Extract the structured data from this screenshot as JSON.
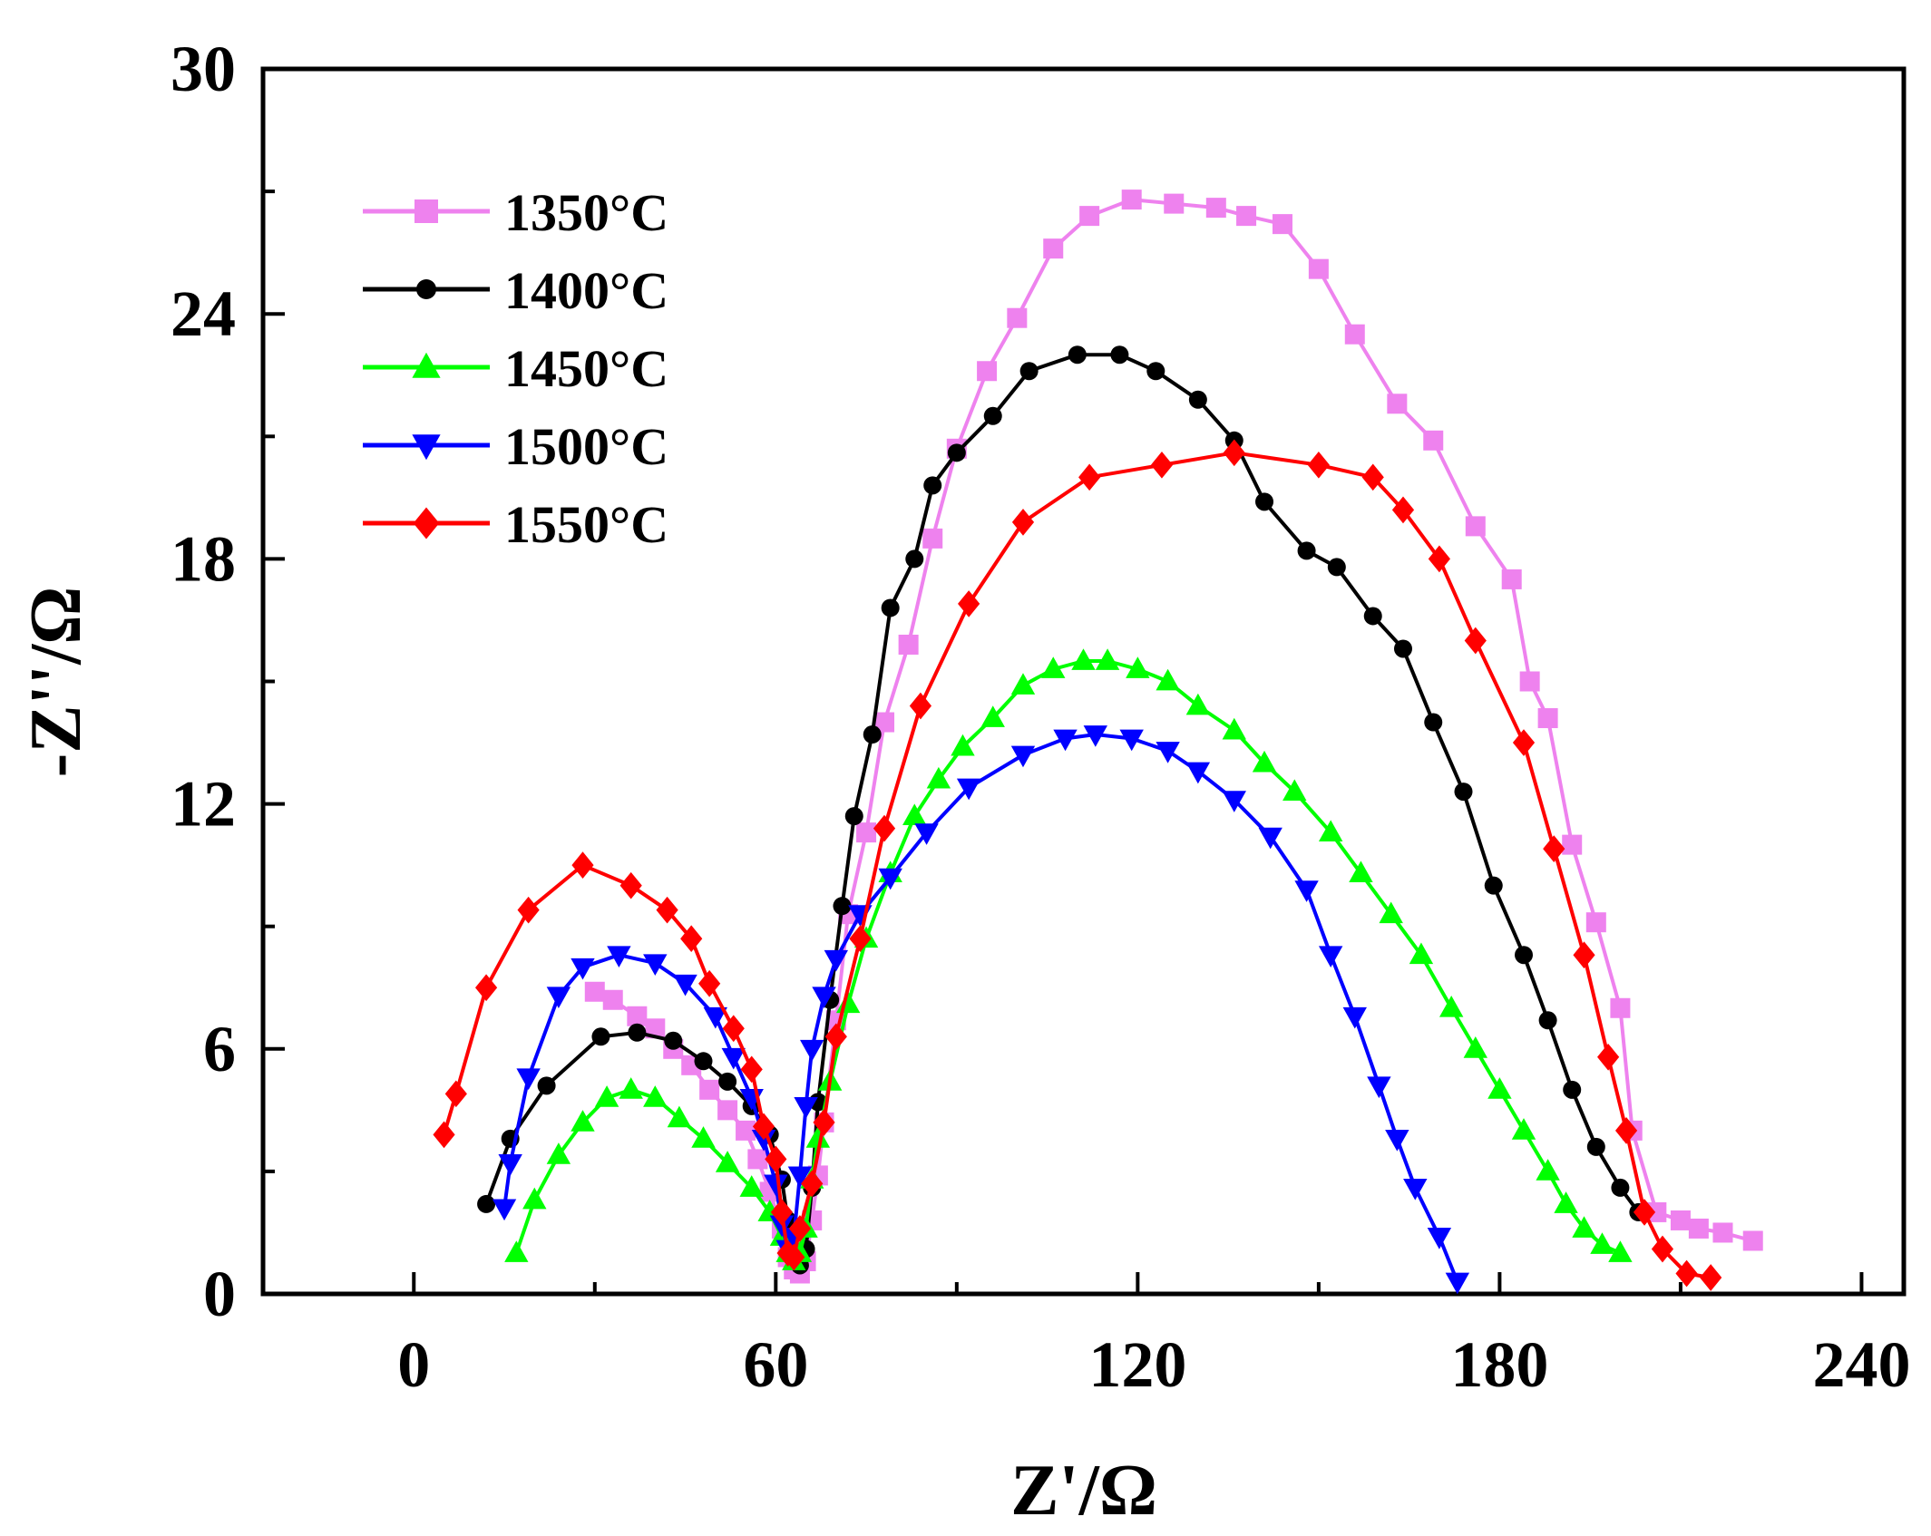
{
  "chart_data": {
    "type": "scatter",
    "title": "",
    "xlabel": "Z'/Ω",
    "ylabel": "-Z''/Ω",
    "xlim": [
      -25,
      247
    ],
    "ylim": [
      0,
      30
    ],
    "xticks": [
      0,
      60,
      120,
      180,
      240
    ],
    "yticks": [
      0,
      6,
      12,
      18,
      24,
      30
    ],
    "xtick_labels": [
      "0",
      "60",
      "120",
      "180",
      "240"
    ],
    "ytick_labels": [
      "0",
      "6",
      "12",
      "18",
      "24",
      "30"
    ],
    "grid": false,
    "legend_position": "top-left",
    "series": [
      {
        "name": "1350°C",
        "color": "#ee82ee",
        "marker": "square",
        "x": [
          30,
          33,
          37,
          40,
          43,
          46,
          49,
          52,
          55,
          57,
          59,
          61,
          62,
          63,
          64,
          65,
          66,
          67,
          68,
          70,
          72,
          75,
          78,
          82,
          86,
          90,
          95,
          100,
          106,
          112,
          119,
          126,
          133,
          138,
          144,
          150,
          156,
          163,
          169,
          176,
          182,
          185,
          188,
          192,
          196,
          200,
          202,
          206,
          210,
          213,
          217,
          222
        ],
        "y": [
          7.4,
          7.2,
          6.8,
          6.5,
          6.0,
          5.6,
          5.0,
          4.5,
          4.0,
          3.3,
          2.5,
          1.6,
          0.9,
          0.6,
          0.5,
          0.8,
          1.8,
          2.9,
          4.2,
          6.7,
          9.3,
          11.3,
          14.0,
          15.9,
          18.5,
          20.7,
          22.6,
          23.9,
          25.6,
          26.4,
          26.8,
          26.7,
          26.6,
          26.4,
          26.2,
          25.1,
          23.5,
          21.8,
          20.9,
          18.8,
          17.5,
          15.0,
          14.1,
          11.0,
          9.1,
          7.0,
          4.0,
          2.0,
          1.8,
          1.6,
          1.5,
          1.3
        ]
      },
      {
        "name": "1400°C",
        "color": "#000000",
        "marker": "circle",
        "x": [
          12,
          16,
          22,
          31,
          37,
          43,
          48,
          52,
          56,
          59,
          61,
          62,
          63,
          64,
          65,
          66,
          67,
          69,
          71,
          73,
          76,
          79,
          83,
          86,
          90,
          96,
          102,
          110,
          117,
          123,
          130,
          136,
          141,
          148,
          153,
          159,
          164,
          169,
          174,
          179,
          184,
          188,
          192,
          196,
          200,
          203
        ],
        "y": [
          2.2,
          3.8,
          5.1,
          6.3,
          6.4,
          6.2,
          5.7,
          5.2,
          4.6,
          3.9,
          2.8,
          1.8,
          1.0,
          0.7,
          1.1,
          2.6,
          4.7,
          7.2,
          9.5,
          11.7,
          13.7,
          16.8,
          18.0,
          19.8,
          20.6,
          21.5,
          22.6,
          23.0,
          23.0,
          22.6,
          21.9,
          20.9,
          19.4,
          18.2,
          17.8,
          16.6,
          15.8,
          14.0,
          12.3,
          10.0,
          8.3,
          6.7,
          5.0,
          3.6,
          2.6,
          2.0
        ]
      },
      {
        "name": "1450°C",
        "color": "#00ff00",
        "marker": "triangle-up",
        "x": [
          17,
          20,
          24,
          28,
          32,
          36,
          40,
          44,
          48,
          52,
          56,
          59,
          61,
          62,
          63,
          64,
          65,
          66,
          67,
          69,
          72,
          75,
          79,
          83,
          87,
          91,
          96,
          101,
          106,
          111,
          115,
          120,
          125,
          130,
          136,
          141,
          146,
          152,
          157,
          162,
          167,
          172,
          176,
          180,
          184,
          188,
          191,
          194,
          197,
          200
        ],
        "y": [
          1.0,
          2.3,
          3.4,
          4.2,
          4.8,
          5.0,
          4.8,
          4.3,
          3.8,
          3.2,
          2.6,
          2.0,
          1.4,
          1.0,
          0.8,
          1.0,
          1.6,
          2.8,
          3.8,
          5.2,
          7.1,
          8.7,
          10.3,
          11.7,
          12.6,
          13.4,
          14.1,
          14.9,
          15.3,
          15.5,
          15.5,
          15.3,
          15.0,
          14.4,
          13.8,
          13.0,
          12.3,
          11.3,
          10.3,
          9.3,
          8.3,
          7.0,
          6.0,
          5.0,
          4.0,
          3.0,
          2.2,
          1.6,
          1.2,
          1.0
        ]
      },
      {
        "name": "1500°C",
        "color": "#0000ff",
        "marker": "triangle-down",
        "x": [
          15,
          16,
          19,
          24,
          28,
          34,
          40,
          45,
          50,
          53,
          56,
          58,
          60,
          61,
          62,
          63,
          64,
          65,
          66,
          68,
          70,
          74,
          79,
          85,
          92,
          101,
          108,
          113,
          119,
          125,
          130,
          136,
          142,
          148,
          152,
          156,
          160,
          163,
          166,
          170,
          173
        ],
        "y": [
          2.1,
          3.2,
          5.3,
          7.3,
          8.0,
          8.3,
          8.1,
          7.6,
          6.8,
          5.8,
          4.8,
          3.8,
          2.7,
          1.7,
          1.1,
          1.4,
          2.9,
          4.6,
          6.0,
          7.3,
          8.2,
          9.3,
          10.2,
          11.3,
          12.4,
          13.2,
          13.6,
          13.7,
          13.6,
          13.3,
          12.8,
          12.1,
          11.2,
          9.9,
          8.3,
          6.8,
          5.1,
          3.8,
          2.6,
          1.4,
          0.3
        ]
      },
      {
        "name": "1550°C",
        "color": "#ff0000",
        "marker": "diamond",
        "x": [
          5,
          7,
          12,
          19,
          28,
          36,
          42,
          46,
          49,
          53,
          56,
          58,
          60,
          61,
          62,
          63,
          64,
          66,
          68,
          70,
          74,
          78,
          84,
          92,
          101,
          112,
          124,
          136,
          150,
          159,
          164,
          170,
          176,
          184,
          189,
          194,
          198,
          201,
          204,
          207,
          211,
          215
        ],
        "y": [
          3.9,
          4.9,
          7.5,
          9.4,
          10.5,
          10.0,
          9.4,
          8.7,
          7.6,
          6.5,
          5.5,
          4.1,
          3.3,
          2.0,
          1.0,
          0.9,
          1.6,
          2.7,
          4.2,
          6.3,
          8.7,
          11.4,
          14.4,
          16.9,
          18.9,
          20.0,
          20.3,
          20.6,
          20.3,
          20.0,
          19.2,
          18.0,
          16.0,
          13.5,
          10.9,
          8.3,
          5.8,
          4.0,
          2.0,
          1.1,
          0.5,
          0.4
        ]
      }
    ]
  }
}
